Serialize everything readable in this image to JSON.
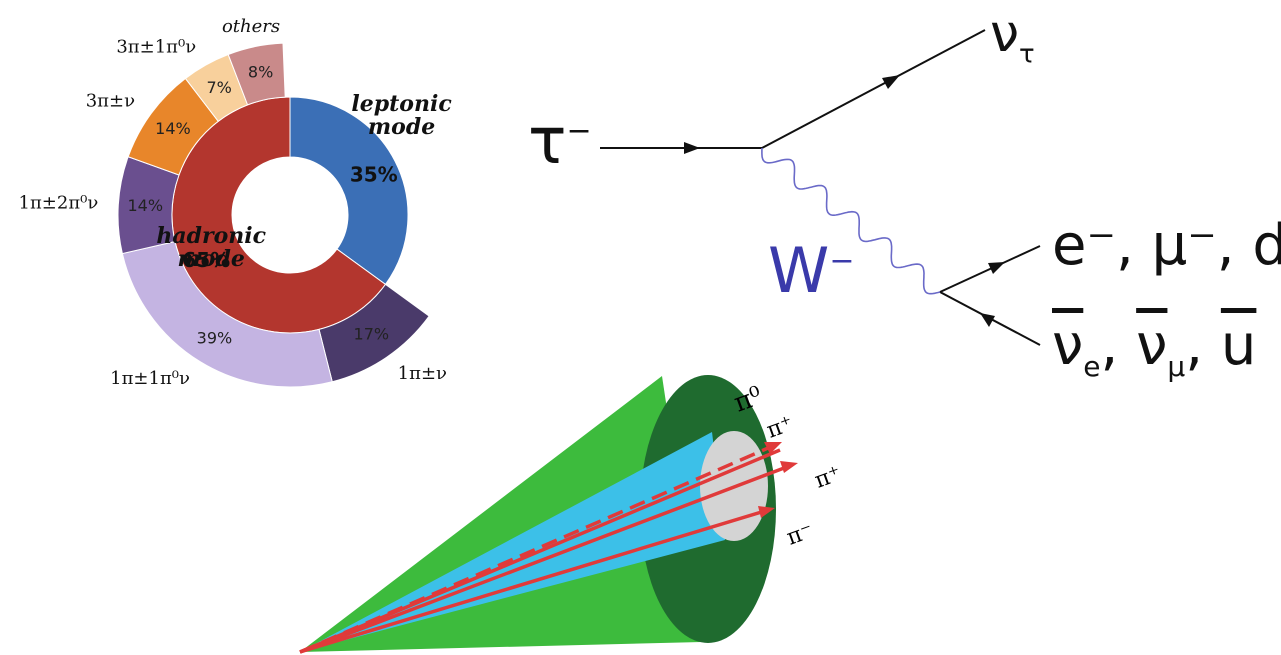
{
  "chart_data": {
    "type": "donut",
    "inner": {
      "names": [
        "leptonic mode",
        "hadronic mode"
      ],
      "values": [
        35,
        65
      ],
      "value_labels": [
        "35%",
        "65%"
      ],
      "colors": [
        "#3b6fb6",
        "#b3362e"
      ]
    },
    "outer": {
      "categories": [
        "1π±ν",
        "1π±1π⁰ν",
        "1π±2π⁰ν",
        "3π±ν",
        "3π±1π⁰ν",
        "others"
      ],
      "values": [
        17,
        39,
        14,
        14,
        7,
        8
      ],
      "value_labels": [
        "17%",
        "39%",
        "14%",
        "14%",
        "7%",
        "8%"
      ],
      "colors": [
        "#4a3a6a",
        "#c4b4e2",
        "#6a4f8f",
        "#e8862a",
        "#f8d09c",
        "#c98a8a"
      ]
    }
  },
  "feynman": {
    "tau": {
      "symbol": "τ",
      "sup": "−"
    },
    "nu_tau": {
      "symbol": "ν",
      "sub": "τ"
    },
    "boson": {
      "symbol": "W",
      "sup": "−"
    },
    "particles": "e⁻, μ⁻, d",
    "antiparticles": {
      "items": [
        {
          "symbol": "ν",
          "sub": "e"
        },
        {
          "symbol": "ν",
          "sub": "μ"
        },
        {
          "symbol": "u"
        }
      ],
      "separator": ","
    }
  },
  "cone": {
    "labels": [
      "π⁰",
      "π⁺",
      "π⁺",
      "π⁻"
    ]
  }
}
